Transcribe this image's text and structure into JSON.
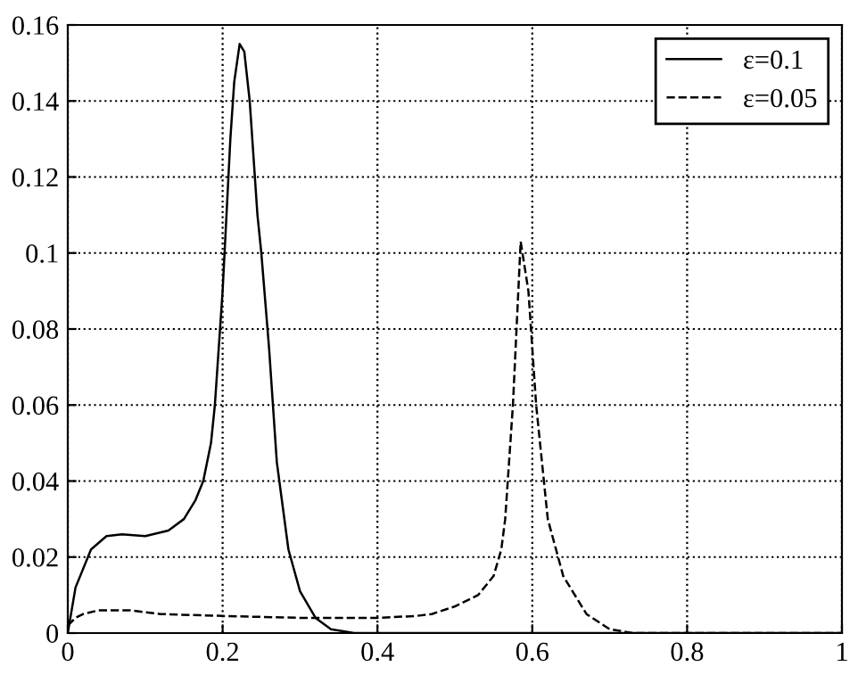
{
  "chart_data": {
    "type": "line",
    "xlim": [
      0,
      1
    ],
    "ylim": [
      0,
      0.16
    ],
    "xticks": [
      0,
      0.2,
      0.4,
      0.6,
      0.8,
      1
    ],
    "yticks": [
      0,
      0.02,
      0.04,
      0.06,
      0.08,
      0.1,
      0.12,
      0.14,
      0.16
    ],
    "grid": true,
    "legend": "top right",
    "series": [
      {
        "name": "ε=0.1",
        "color": "#000000",
        "line_style": "solid",
        "x": [
          0,
          0.01,
          0.03,
          0.05,
          0.07,
          0.1,
          0.13,
          0.15,
          0.165,
          0.175,
          0.185,
          0.19,
          0.2,
          0.205,
          0.21,
          0.215,
          0.222,
          0.228,
          0.235,
          0.245,
          0.25,
          0.26,
          0.27,
          0.285,
          0.3,
          0.32,
          0.34,
          0.37,
          0.5,
          1
        ],
        "values": [
          0,
          0.012,
          0.022,
          0.0255,
          0.026,
          0.0255,
          0.027,
          0.03,
          0.035,
          0.04,
          0.05,
          0.06,
          0.09,
          0.11,
          0.13,
          0.145,
          0.155,
          0.153,
          0.14,
          0.11,
          0.1,
          0.075,
          0.045,
          0.022,
          0.011,
          0.004,
          0.001,
          0,
          0,
          0
        ]
      },
      {
        "name": "ε=0.05",
        "color": "#000000",
        "line_style": "dashed",
        "x": [
          0,
          0.01,
          0.02,
          0.04,
          0.08,
          0.12,
          0.2,
          0.3,
          0.4,
          0.45,
          0.47,
          0.5,
          0.53,
          0.55,
          0.56,
          0.565,
          0.575,
          0.585,
          0.595,
          0.605,
          0.62,
          0.64,
          0.67,
          0.7,
          0.73,
          1
        ],
        "values": [
          0.002,
          0.004,
          0.005,
          0.006,
          0.006,
          0.005,
          0.0045,
          0.004,
          0.004,
          0.0045,
          0.005,
          0.007,
          0.01,
          0.015,
          0.022,
          0.03,
          0.06,
          0.103,
          0.09,
          0.06,
          0.03,
          0.015,
          0.005,
          0.001,
          0,
          0
        ]
      }
    ]
  }
}
